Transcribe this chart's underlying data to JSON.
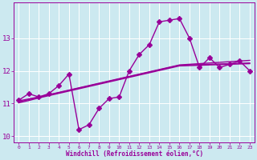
{
  "xlabel": "Windchill (Refroidissement éolien,°C)",
  "x_values": [
    0,
    1,
    2,
    3,
    4,
    5,
    6,
    7,
    8,
    9,
    10,
    11,
    12,
    13,
    14,
    15,
    16,
    17,
    18,
    19,
    20,
    21,
    22,
    23
  ],
  "y_main": [
    11.1,
    11.3,
    11.2,
    11.3,
    11.55,
    11.9,
    10.2,
    10.35,
    10.85,
    11.15,
    11.2,
    12.0,
    12.5,
    12.8,
    13.5,
    13.55,
    13.6,
    13.0,
    12.1,
    12.4,
    12.1,
    12.2,
    12.3,
    12.0
  ],
  "y_trend1": [
    11.05,
    11.12,
    11.19,
    11.26,
    11.33,
    11.4,
    11.47,
    11.54,
    11.61,
    11.68,
    11.75,
    11.82,
    11.89,
    11.96,
    12.03,
    12.1,
    12.17,
    12.18,
    12.19,
    12.2,
    12.21,
    12.22,
    12.23,
    12.24
  ],
  "y_trend2": [
    11.08,
    11.14,
    11.2,
    11.27,
    11.34,
    11.41,
    11.48,
    11.55,
    11.62,
    11.69,
    11.76,
    11.83,
    11.9,
    11.97,
    12.04,
    12.11,
    12.18,
    12.2,
    12.22,
    12.24,
    12.26,
    12.28,
    12.3,
    12.32
  ],
  "y_trend3": [
    11.02,
    11.09,
    11.17,
    11.24,
    11.31,
    11.38,
    11.45,
    11.52,
    11.59,
    11.66,
    11.73,
    11.8,
    11.87,
    11.94,
    12.01,
    12.08,
    12.15,
    12.16,
    12.17,
    12.18,
    12.19,
    12.2,
    12.21,
    12.22
  ],
  "ylim": [
    9.8,
    14.1
  ],
  "yticks": [
    10,
    11,
    12,
    13
  ],
  "xlim": [
    -0.5,
    23.5
  ],
  "line_color": "#990099",
  "bg_color": "#cce9f0",
  "grid_color": "#ffffff",
  "markersize": 3,
  "linewidth": 1.0
}
